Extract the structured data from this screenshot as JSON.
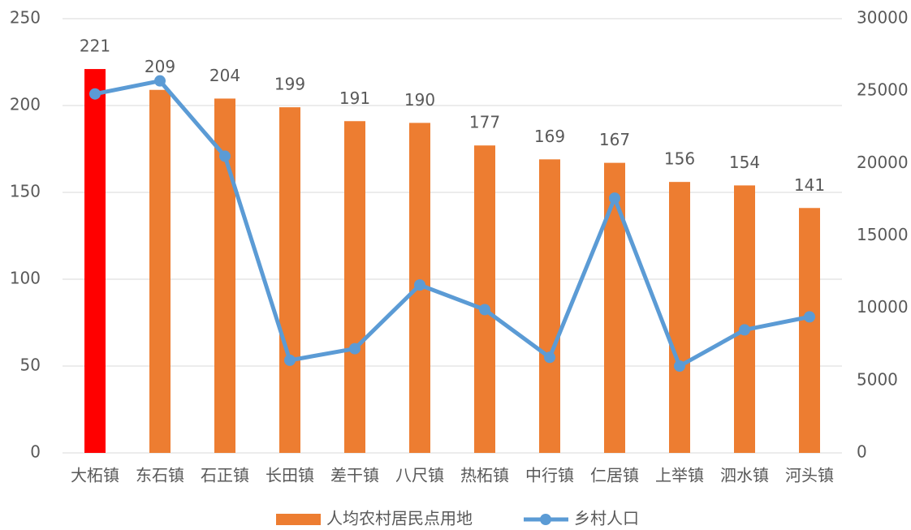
{
  "chart_data": {
    "type": "bar-line",
    "categories": [
      "大柘镇",
      "东石镇",
      "石正镇",
      "长田镇",
      "差干镇",
      "八尺镇",
      "热柘镇",
      "中行镇",
      "仁居镇",
      "上举镇",
      "泗水镇",
      "河头镇"
    ],
    "series": [
      {
        "name": "人均农村居民点用地",
        "type": "bar",
        "color": "#ed7d31",
        "colors": [
          "#ff0000",
          "#ed7d31",
          "#ed7d31",
          "#ed7d31",
          "#ed7d31",
          "#ed7d31",
          "#ed7d31",
          "#ed7d31",
          "#ed7d31",
          "#ed7d31",
          "#ed7d31",
          "#ed7d31"
        ],
        "values": [
          221,
          209,
          204,
          199,
          191,
          190,
          177,
          169,
          167,
          156,
          154,
          141
        ]
      },
      {
        "name": "乡村人口",
        "type": "line",
        "axis": "y2",
        "color": "#5b9bd5",
        "values": [
          24800,
          25700,
          20500,
          6400,
          7200,
          11600,
          9900,
          6600,
          17600,
          6000,
          8500,
          9400
        ]
      }
    ],
    "ylim": [
      0,
      250
    ],
    "yticks": [
      0,
      50,
      100,
      150,
      200,
      250
    ],
    "y2lim": [
      0,
      30000
    ],
    "y2ticks": [
      0,
      5000,
      10000,
      15000,
      20000,
      25000,
      30000
    ],
    "grid": true,
    "legend": "bottom"
  }
}
